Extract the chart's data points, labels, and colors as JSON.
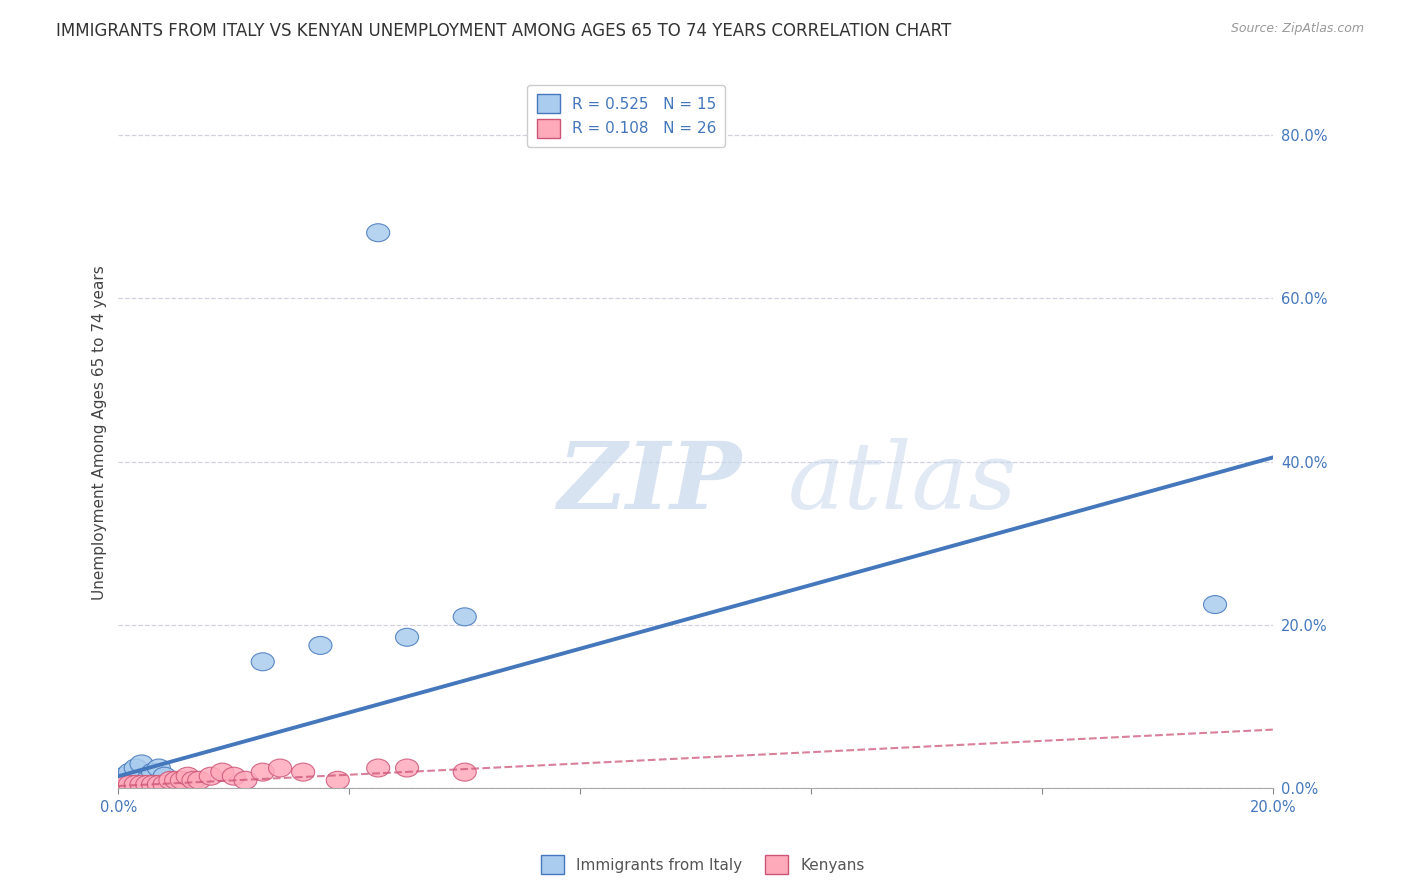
{
  "title": "IMMIGRANTS FROM ITALY VS KENYAN UNEMPLOYMENT AMONG AGES 65 TO 74 YEARS CORRELATION CHART",
  "source": "Source: ZipAtlas.com",
  "ylabel": "Unemployment Among Ages 65 to 74 years",
  "xlim": [
    0.0,
    0.2
  ],
  "ylim": [
    0.0,
    0.87
  ],
  "xticks": [
    0.0,
    0.04,
    0.08,
    0.12,
    0.16,
    0.2
  ],
  "yticks": [
    0.0,
    0.2,
    0.4,
    0.6,
    0.8
  ],
  "blue_R": 0.525,
  "blue_N": 15,
  "pink_R": 0.108,
  "pink_N": 26,
  "blue_scatter_x": [
    0.0005,
    0.001,
    0.002,
    0.003,
    0.004,
    0.005,
    0.006,
    0.007,
    0.008,
    0.025,
    0.035,
    0.05,
    0.06,
    0.19
  ],
  "blue_scatter_y": [
    0.01,
    0.015,
    0.02,
    0.025,
    0.03,
    0.01,
    0.02,
    0.025,
    0.015,
    0.155,
    0.175,
    0.185,
    0.21,
    0.225
  ],
  "blue_outlier_x": [
    0.045
  ],
  "blue_outlier_y": [
    0.68
  ],
  "pink_scatter_x": [
    0.0005,
    0.001,
    0.002,
    0.003,
    0.004,
    0.005,
    0.006,
    0.007,
    0.008,
    0.009,
    0.01,
    0.011,
    0.012,
    0.013,
    0.014,
    0.016,
    0.018,
    0.02,
    0.022,
    0.025,
    0.028,
    0.032,
    0.038,
    0.045,
    0.05,
    0.06
  ],
  "pink_scatter_y": [
    0.005,
    0.005,
    0.005,
    0.005,
    0.005,
    0.005,
    0.005,
    0.005,
    0.005,
    0.01,
    0.01,
    0.01,
    0.015,
    0.01,
    0.01,
    0.015,
    0.02,
    0.015,
    0.01,
    0.02,
    0.025,
    0.02,
    0.01,
    0.025,
    0.025,
    0.02
  ],
  "blue_line_x": [
    0.0,
    0.2
  ],
  "blue_line_y": [
    0.015,
    0.405
  ],
  "pink_line_x": [
    0.0,
    0.2
  ],
  "pink_line_y": [
    0.003,
    0.072
  ],
  "blue_color": "#4477BB",
  "blue_fill": "#AACCEE",
  "pink_color": "#CC5577",
  "pink_fill": "#FFAABB",
  "watermark_zip": "ZIP",
  "watermark_atlas": "atlas",
  "background_color": "#FFFFFF",
  "grid_color": "#CCCCDD",
  "title_fontsize": 12,
  "axis_label_fontsize": 11,
  "tick_fontsize": 10.5,
  "legend_fontsize": 11
}
